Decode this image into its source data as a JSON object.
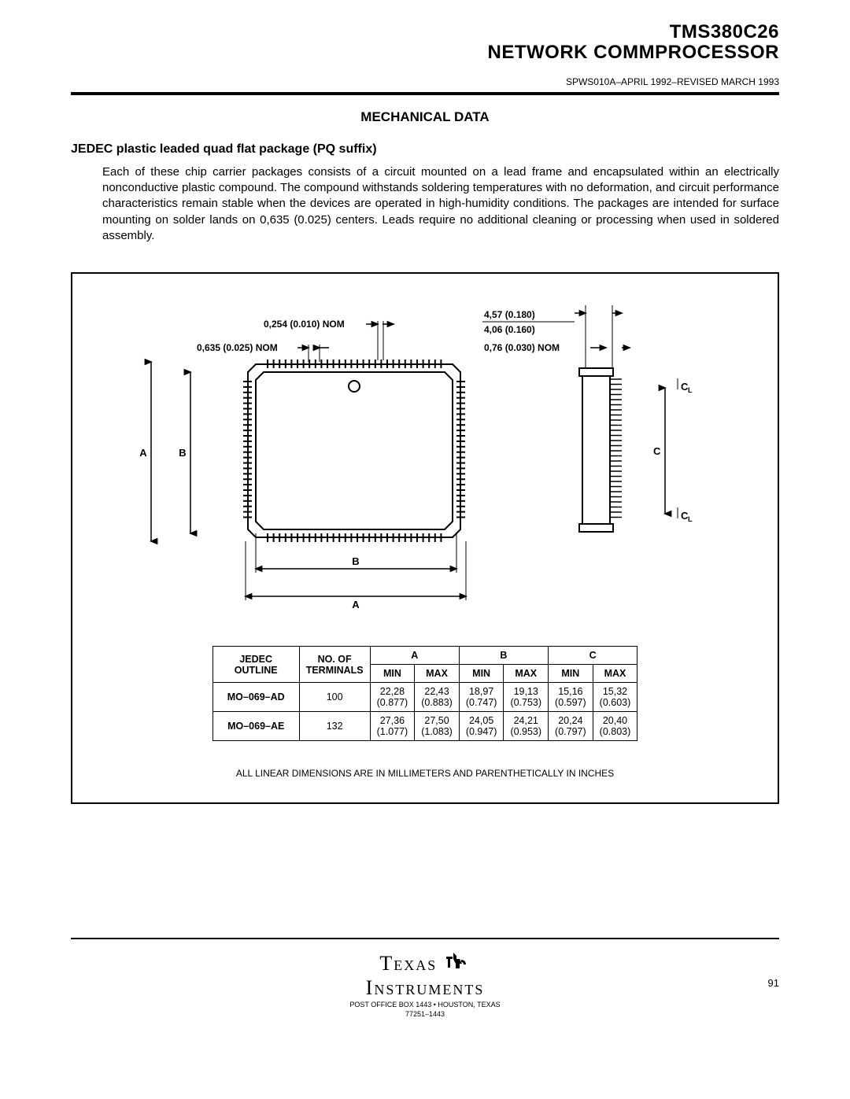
{
  "header": {
    "title1": "TMS380C26",
    "title2": "NETWORK COMMPROCESSOR",
    "docnum": "SPWS010A–APRIL 1992–REVISED MARCH 1993"
  },
  "section_title": "MECHANICAL DATA",
  "subtitle": "JEDEC plastic leaded quad flat package (PQ suffix)",
  "paragraph": "Each of these chip carrier packages consists of a circuit mounted on a lead frame and encapsulated within an electrically nonconductive plastic compound. The compound withstands soldering temperatures with no deformation, and circuit performance characteristics remain stable when the devices are operated in high-humidity conditions. The packages are intended for surface mounting on solder lands on 0,635 (0.025) centers. Leads require no additional cleaning or processing when used in soldered assembly.",
  "diagram": {
    "lead_width": "0,254 (0.010) NOM",
    "lead_pitch": "0,635 (0.025) NOM",
    "height_max": "4,57 (0.180)",
    "height_min": "4,06 (0.160)",
    "lead_ext": "0,76 (0.030) NOM",
    "label_A": "A",
    "label_B": "B",
    "label_C": "C",
    "label_CL": "C",
    "label_CL_sub": "L"
  },
  "table": {
    "head": {
      "c1": "JEDEC\nOUTLINE",
      "c2": "NO. OF\nTERMINALS",
      "c3": "A",
      "c4": "B",
      "c5": "C",
      "min": "MIN",
      "max": "MAX"
    },
    "rows": [
      {
        "outline": "MO–069–AD",
        "terminals": "100",
        "a_min_mm": "22,28",
        "a_min_in": "(0.877)",
        "a_max_mm": "22,43",
        "a_max_in": "(0.883)",
        "b_min_mm": "18,97",
        "b_min_in": "(0.747)",
        "b_max_mm": "19,13",
        "b_max_in": "(0.753)",
        "c_min_mm": "15,16",
        "c_min_in": "(0.597)",
        "c_max_mm": "15,32",
        "c_max_in": "(0.603)"
      },
      {
        "outline": "MO–069–AE",
        "terminals": "132",
        "a_min_mm": "27,36",
        "a_min_in": "(1.077)",
        "a_max_mm": "27,50",
        "a_max_in": "(1.083)",
        "b_min_mm": "24,05",
        "b_min_in": "(0.947)",
        "b_max_mm": "24,21",
        "b_max_in": "(0.953)",
        "c_min_mm": "20,24",
        "c_min_in": "(0.797)",
        "c_max_mm": "20,40",
        "c_max_in": "(0.803)"
      }
    ],
    "note": "ALL LINEAR DIMENSIONS ARE IN MILLIMETERS AND PARENTHETICALLY IN INCHES"
  },
  "footer": {
    "brand1": "Texas",
    "brand2": "Instruments",
    "addr1": "POST OFFICE BOX 1443 • HOUSTON, TEXAS",
    "addr2": "77251–1443",
    "page": "91"
  }
}
